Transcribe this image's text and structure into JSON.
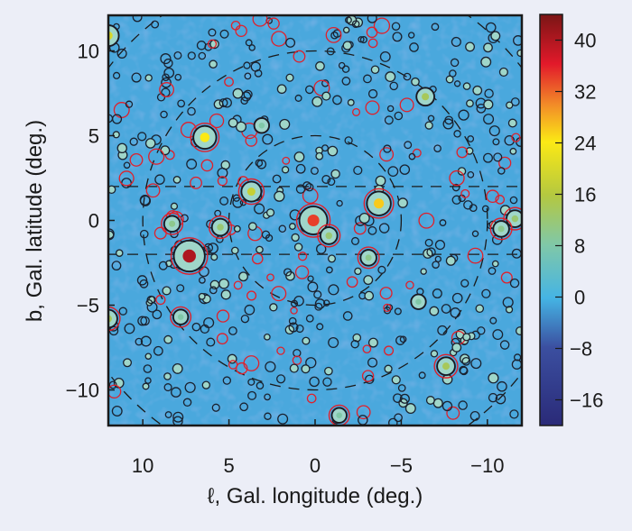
{
  "chart_data": {
    "type": "heatmap",
    "title": "",
    "xlabel": "ℓ, Gal.  longitude (deg.)",
    "ylabel": "b, Gal.  latitude (deg.)",
    "xlim": [
      12,
      -12
    ],
    "ylim": [
      -12.1,
      12.1
    ],
    "xticks": [
      10,
      5,
      0,
      -5,
      -10
    ],
    "xtick_labels": [
      "10",
      "5",
      "0",
      "−5",
      "−10"
    ],
    "yticks": [
      10,
      5,
      0,
      -5,
      -10
    ],
    "ytick_labels": [
      "10",
      "5",
      "0",
      "−5",
      "−10"
    ],
    "colorbar": {
      "range": [
        -20,
        44
      ],
      "ticks": [
        40,
        32,
        24,
        16,
        8,
        0,
        -8,
        -16
      ],
      "tick_labels": [
        "40",
        "32",
        "24",
        "16",
        "8",
        "0",
        "−8",
        "−16"
      ]
    },
    "dashed_circle_radii_deg": [
      5,
      10,
      15
    ],
    "dashed_latitude_lines_deg": [
      2,
      -2
    ],
    "bright_sources": [
      {
        "l": 6.4,
        "b": 4.9,
        "value": 24,
        "red_ring": true
      },
      {
        "l": 7.3,
        "b": -2.1,
        "value": 40,
        "red_ring": true
      },
      {
        "l": 0.1,
        "b": 0.0,
        "value": 34,
        "red_ring": true
      },
      {
        "l": -3.7,
        "b": 1.0,
        "value": 26,
        "red_ring": true
      },
      {
        "l": 3.7,
        "b": 1.7,
        "value": 18,
        "red_ring": true
      },
      {
        "l": 12.0,
        "b": 10.9,
        "value": 20,
        "red_ring": false
      },
      {
        "l": 12.0,
        "b": -5.8,
        "value": 14,
        "red_ring": true
      },
      {
        "l": -7.6,
        "b": -8.6,
        "value": 14,
        "red_ring": true
      },
      {
        "l": -6.4,
        "b": 7.3,
        "value": 14,
        "red_ring": false
      },
      {
        "l": 5.5,
        "b": -0.4,
        "value": 12,
        "red_ring": true
      },
      {
        "l": 8.3,
        "b": -0.2,
        "value": 10,
        "red_ring": true
      },
      {
        "l": -11.6,
        "b": 0.1,
        "value": 12,
        "red_ring": true
      },
      {
        "l": -10.8,
        "b": -0.5,
        "value": 10,
        "red_ring": true
      },
      {
        "l": -0.8,
        "b": -0.9,
        "value": 12,
        "red_ring": true
      },
      {
        "l": -3.1,
        "b": -2.2,
        "value": 10,
        "red_ring": true
      },
      {
        "l": 7.8,
        "b": -5.7,
        "value": 8,
        "red_ring": true
      },
      {
        "l": -6.0,
        "b": -4.8,
        "value": 8,
        "red_ring": false
      },
      {
        "l": 3.1,
        "b": 5.6,
        "value": 8,
        "red_ring": false
      },
      {
        "l": -1.4,
        "b": -11.5,
        "value": 8,
        "red_ring": true
      }
    ]
  }
}
